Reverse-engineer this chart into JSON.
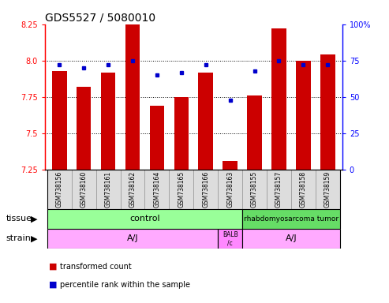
{
  "title": "GDS5527 / 5080010",
  "samples": [
    "GSM738156",
    "GSM738160",
    "GSM738161",
    "GSM738162",
    "GSM738164",
    "GSM738165",
    "GSM738166",
    "GSM738163",
    "GSM738155",
    "GSM738157",
    "GSM738158",
    "GSM738159"
  ],
  "bar_values": [
    7.93,
    7.82,
    7.92,
    8.25,
    7.69,
    7.75,
    7.92,
    7.31,
    7.76,
    8.22,
    8.0,
    8.04
  ],
  "percentile_values": [
    72,
    70,
    72,
    75,
    65,
    67,
    72,
    48,
    68,
    75,
    72,
    72
  ],
  "y_min": 7.25,
  "y_max": 8.25,
  "y_ticks": [
    7.25,
    7.5,
    7.75,
    8.0,
    8.25
  ],
  "right_y_ticks": [
    0,
    25,
    50,
    75,
    100
  ],
  "bar_color": "#cc0000",
  "dot_color": "#0000cc",
  "tissue_control_label": "control",
  "tissue_tumor_label": "rhabdomyosarcoma tumor",
  "tissue_control_color": "#99ff99",
  "tissue_tumor_color": "#66dd66",
  "strain_aj_label": "A/J",
  "strain_balb_label": "BALB\n/c",
  "strain_color": "#ffaaff",
  "strain_balb_color": "#ff88ff",
  "legend_bar_label": "transformed count",
  "legend_dot_label": "percentile rank within the sample",
  "title_fontsize": 10,
  "tick_fontsize": 7,
  "sample_fontsize": 5.5,
  "annot_fontsize": 8
}
